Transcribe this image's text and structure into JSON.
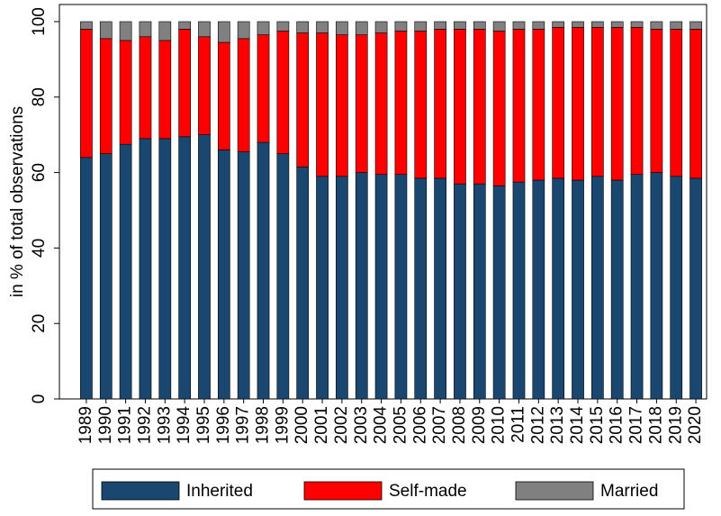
{
  "chart_data": {
    "type": "stacked_bar",
    "ylabel": "in % of total observations",
    "categories": [
      "1989",
      "1990",
      "1991",
      "1992",
      "1993",
      "1994",
      "1995",
      "1996",
      "1997",
      "1998",
      "1999",
      "2000",
      "2001",
      "2002",
      "2003",
      "2004",
      "2005",
      "2006",
      "2007",
      "2008",
      "2009",
      "2010",
      "2011",
      "2012",
      "2013",
      "2014",
      "2015",
      "2016",
      "2017",
      "2018",
      "2019",
      "2020"
    ],
    "series": [
      {
        "name": "Inherited",
        "color": "#1a476f",
        "values": [
          64,
          65,
          67.5,
          69,
          69,
          69.5,
          70,
          66,
          65.5,
          68,
          65,
          61.5,
          59,
          59,
          60,
          59.5,
          59.5,
          58.5,
          58.5,
          57,
          57,
          56.5,
          57.5,
          58,
          58.5,
          58,
          59,
          58,
          59.5,
          60,
          59,
          58.5
        ]
      },
      {
        "name": "Self-made",
        "color": "#ff0000",
        "values": [
          34,
          30.5,
          27.5,
          27,
          26,
          28.5,
          26,
          28.5,
          30,
          28.5,
          32.5,
          35.5,
          38,
          37.5,
          36.5,
          37.5,
          38,
          39,
          39.5,
          41,
          41,
          41,
          40.5,
          40,
          40,
          40.5,
          39.5,
          40.5,
          39,
          38,
          39,
          39.5
        ]
      },
      {
        "name": "Married",
        "color": "#808080",
        "values": [
          2,
          4.5,
          5,
          4,
          5,
          2,
          4,
          5.5,
          4.5,
          3.5,
          2.5,
          3,
          3,
          3.5,
          3.5,
          3,
          2.5,
          2.5,
          2,
          2,
          2,
          2.5,
          2,
          2,
          1.5,
          1.5,
          1.5,
          1.5,
          1.5,
          2,
          2,
          2
        ]
      }
    ],
    "ylim": [
      0,
      100
    ],
    "yticks": [
      0,
      20,
      40,
      60,
      80,
      100
    ]
  }
}
